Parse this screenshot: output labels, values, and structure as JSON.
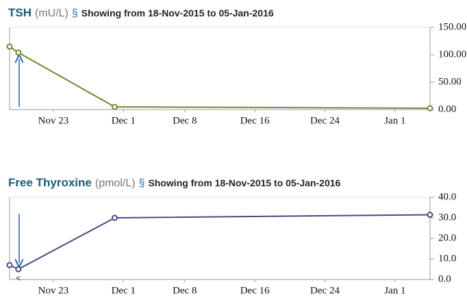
{
  "chart_data": [
    {
      "type": "line",
      "title": "TSH",
      "unit": "(mU/L)",
      "symbol": "§",
      "subtitle": "Showing from 18-Nov-2015 to 05-Jan-2016",
      "x": [
        "2015-11-18",
        "2015-11-19",
        "2015-11-30",
        "2016-01-05"
      ],
      "series": [
        {
          "name": "TSH",
          "color": "#6b8a35",
          "values": [
            115,
            104,
            5,
            2.5
          ]
        }
      ],
      "xlim": [
        "2015-11-18",
        "2016-01-05"
      ],
      "xticks": [
        {
          "value": "2015-11-23",
          "label": "Nov 23"
        },
        {
          "value": "2015-12-01",
          "label": "Dec 1"
        },
        {
          "value": "2015-12-08",
          "label": "Dec 8"
        },
        {
          "value": "2015-12-16",
          "label": "Dec 16"
        },
        {
          "value": "2015-12-24",
          "label": "Dec 24"
        },
        {
          "value": "2016-01-01",
          "label": "Jan 1"
        }
      ],
      "ylim": [
        0,
        150
      ],
      "yticks": [
        {
          "value": 0,
          "label": "0.00"
        },
        {
          "value": 50,
          "label": "50.00"
        },
        {
          "value": 100,
          "label": "100.00"
        },
        {
          "value": 150,
          "label": "150.00"
        }
      ]
    },
    {
      "type": "line",
      "title": "Free Thyroxine",
      "unit": "(pmol/L)",
      "symbol": "§",
      "subtitle": "Showing from 18-Nov-2015 to 05-Jan-2016",
      "x": [
        "2015-11-18",
        "2015-11-19",
        "2015-11-30",
        "2016-01-05"
      ],
      "series": [
        {
          "name": "Free Thyroxine",
          "color": "#4a4880",
          "values": [
            7,
            5,
            30,
            31.5
          ]
        }
      ],
      "annotation": "<",
      "xlim": [
        "2015-11-18",
        "2016-01-05"
      ],
      "xticks": [
        {
          "value": "2015-11-23",
          "label": "Nov 23"
        },
        {
          "value": "2015-12-01",
          "label": "Dec 1"
        },
        {
          "value": "2015-12-08",
          "label": "Dec 8"
        },
        {
          "value": "2015-12-16",
          "label": "Dec 16"
        },
        {
          "value": "2015-12-24",
          "label": "Dec 24"
        },
        {
          "value": "2016-01-01",
          "label": "Jan 1"
        }
      ],
      "ylim": [
        0,
        40
      ],
      "yticks": [
        {
          "value": 0,
          "label": "0.0"
        },
        {
          "value": 10,
          "label": "10.0"
        },
        {
          "value": 20,
          "label": "20.0"
        },
        {
          "value": 30,
          "label": "30.0"
        },
        {
          "value": 40,
          "label": "40.0"
        }
      ]
    }
  ]
}
